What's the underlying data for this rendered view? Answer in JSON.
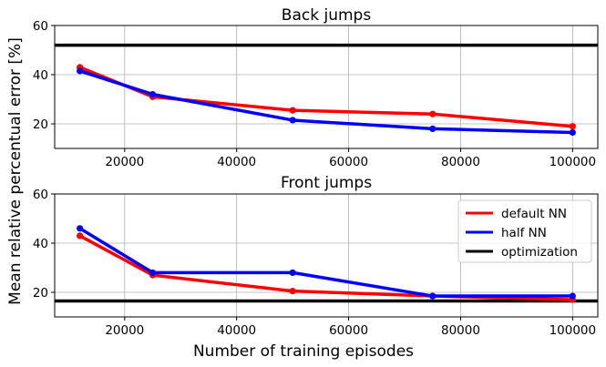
{
  "ylabel": "Mean relative percentual error [%]",
  "xlabel": "Number of training episodes",
  "legend": {
    "placement": "top-right",
    "entries": [
      {
        "label": "default NN",
        "color": "#ff0000",
        "kind": "line"
      },
      {
        "label": "half NN",
        "color": "#0000ff",
        "kind": "line"
      },
      {
        "label": "optimization",
        "color": "#000000",
        "kind": "line"
      }
    ]
  },
  "chart_data": [
    {
      "type": "line",
      "title": "Back jumps",
      "xlim": [
        7500,
        104500
      ],
      "ylim": [
        10,
        60
      ],
      "xticks": [
        20000,
        40000,
        60000,
        80000,
        100000
      ],
      "xtick_labels": [
        "20000",
        "40000",
        "60000",
        "80000",
        "100000"
      ],
      "yticks": [
        20,
        40,
        60
      ],
      "ytick_labels": [
        "20",
        "40",
        "60"
      ],
      "grid": true,
      "x": [
        12000,
        25000,
        50000,
        75000,
        100000
      ],
      "series": [
        {
          "name": "default NN",
          "color": "#ff0000",
          "values": [
            43,
            31,
            25.5,
            24,
            19
          ]
        },
        {
          "name": "half NN",
          "color": "#0000ff",
          "values": [
            41.5,
            32,
            21.5,
            18,
            16.5
          ]
        }
      ],
      "hlines": [
        {
          "name": "optimization",
          "color": "#000000",
          "y": 52
        }
      ]
    },
    {
      "type": "line",
      "title": "Front jumps",
      "xlim": [
        7500,
        104500
      ],
      "ylim": [
        10,
        60
      ],
      "xticks": [
        20000,
        40000,
        60000,
        80000,
        100000
      ],
      "xtick_labels": [
        "20000",
        "40000",
        "60000",
        "80000",
        "100000"
      ],
      "yticks": [
        20,
        40,
        60
      ],
      "ytick_labels": [
        "20",
        "40",
        "60"
      ],
      "grid": true,
      "x": [
        12000,
        25000,
        50000,
        75000,
        100000
      ],
      "series": [
        {
          "name": "default NN",
          "color": "#ff0000",
          "values": [
            43,
            27,
            20.5,
            18.5,
            17
          ]
        },
        {
          "name": "half NN",
          "color": "#0000ff",
          "values": [
            46,
            28,
            28,
            18.5,
            18.5
          ]
        }
      ],
      "hlines": [
        {
          "name": "optimization",
          "color": "#000000",
          "y": 16.5
        }
      ]
    }
  ]
}
